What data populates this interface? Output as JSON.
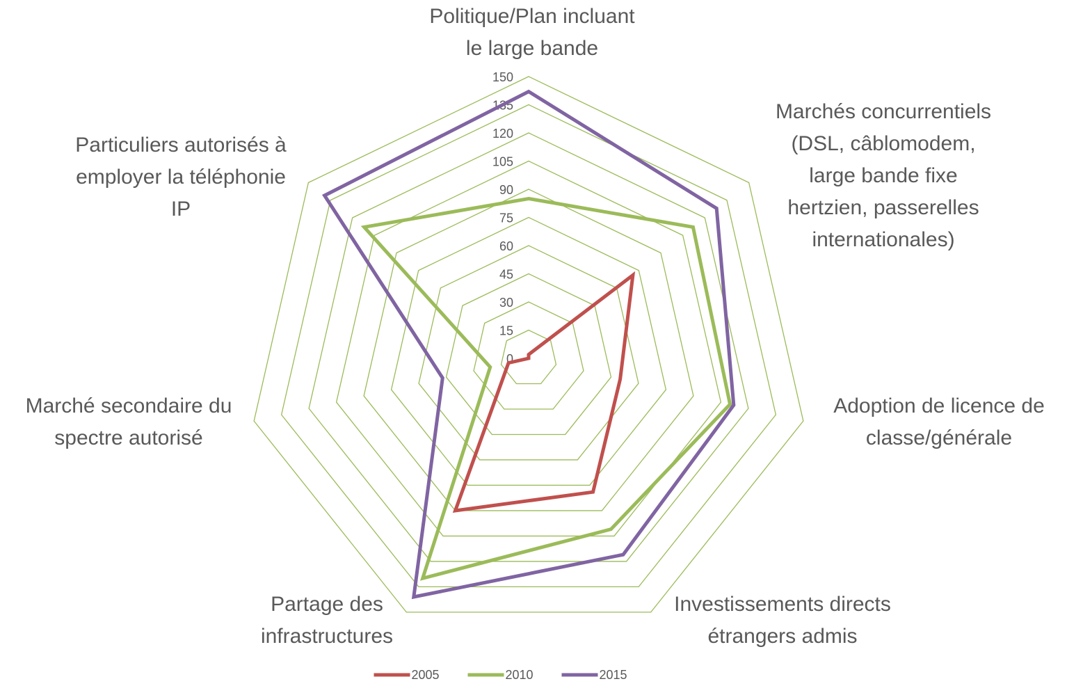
{
  "chart_data": {
    "type": "radar",
    "categories": [
      [
        "Politique/Plan incluant",
        "le large bande"
      ],
      [
        "Marchés concurrentiels",
        "(DSL, câblomodem,",
        "large bande fixe",
        "hertzien, passerelles",
        "internationales)"
      ],
      [
        "Adoption de licence de",
        "classe/générale"
      ],
      [
        "Investissements directs",
        "étrangers admis"
      ],
      [
        "Partage des",
        "infrastructures"
      ],
      [
        "Marché secondaire du",
        "spectre autorisé"
      ],
      [
        "Particuliers autorisés à",
        "employer la téléphonie",
        "IP"
      ]
    ],
    "series": [
      {
        "name": "2005",
        "color": "#c0504d",
        "values": [
          2,
          71,
          50,
          79,
          90,
          11,
          0
        ]
      },
      {
        "name": "2010",
        "color": "#9bbb59",
        "values": [
          85,
          112,
          110,
          101,
          130,
          21,
          112
        ]
      },
      {
        "name": "2015",
        "color": "#8064a2",
        "values": [
          142,
          128,
          112,
          116,
          141,
          47,
          139
        ]
      }
    ],
    "ylim": [
      0,
      150
    ],
    "yticks": [
      0,
      15,
      30,
      45,
      60,
      75,
      90,
      105,
      120,
      135,
      150
    ],
    "grid_color": "#9bbb59",
    "legend": "bottom"
  }
}
